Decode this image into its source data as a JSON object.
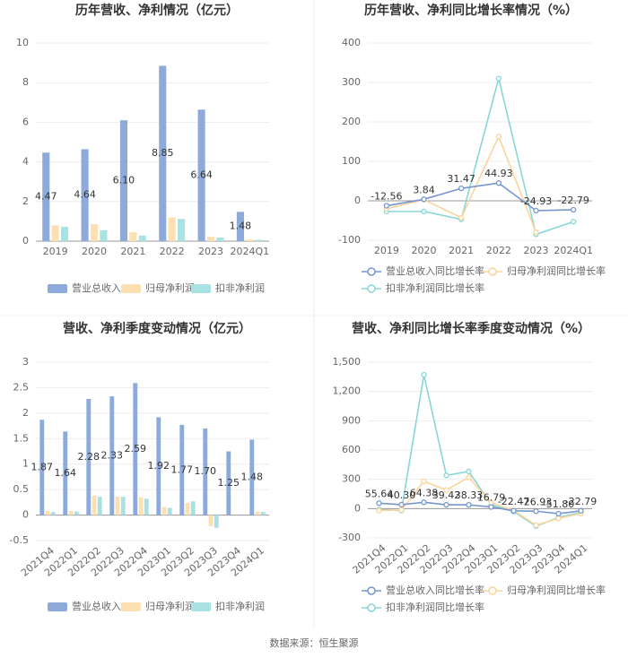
{
  "chart_data": [
    {
      "type": "bar",
      "title": "历年营收、净利情况（亿元）",
      "categories": [
        "2019",
        "2020",
        "2021",
        "2022",
        "2023",
        "2024Q1"
      ],
      "series": [
        {
          "name": "营业总收入",
          "color": "#8eaadb",
          "values": [
            4.47,
            4.64,
            6.1,
            8.85,
            6.64,
            1.48
          ],
          "value_labels": [
            "4.47",
            "4.64",
            "6.10",
            "8.85",
            "6.64",
            "1.48"
          ]
        },
        {
          "name": "归母净利润",
          "color": "#fde0b2",
          "values": [
            0.8,
            0.85,
            0.45,
            1.2,
            0.22,
            0.08
          ]
        },
        {
          "name": "扣非净利润",
          "color": "#a9e2e2",
          "values": [
            0.72,
            0.55,
            0.28,
            1.12,
            0.18,
            0.07
          ]
        }
      ],
      "ylim": [
        0,
        10
      ],
      "yticks": [
        0,
        2,
        4,
        6,
        8,
        10
      ],
      "grid": true
    },
    {
      "type": "line",
      "title": "历年营收、净利同比增长率情况（%）",
      "categories": [
        "2019",
        "2020",
        "2021",
        "2022",
        "2023",
        "2024Q1"
      ],
      "series": [
        {
          "name": "营业总收入同比增长率",
          "color": "#7596d1",
          "values": [
            -12.56,
            3.84,
            31.47,
            44.93,
            -24.93,
            -22.79
          ],
          "value_labels": [
            "-12.56",
            "3.84",
            "31.47",
            "44.93",
            "-24.93",
            "-22.79"
          ]
        },
        {
          "name": "归母净利润同比增长率",
          "color": "#fcd49b",
          "values": [
            -20,
            3,
            -43,
            163,
            -80,
            null
          ]
        },
        {
          "name": "扣非净利润同比增长率",
          "color": "#88d7d7",
          "values": [
            -27,
            -27,
            -47,
            310,
            -85,
            -53
          ]
        }
      ],
      "ylim": [
        -100,
        400
      ],
      "yticks": [
        -100,
        0,
        100,
        200,
        300,
        400
      ],
      "grid": true
    },
    {
      "type": "bar",
      "title": "营收、净利季度变动情况（亿元）",
      "categories": [
        "2021Q4",
        "2022Q1",
        "2022Q2",
        "2022Q3",
        "2022Q4",
        "2023Q1",
        "2023Q2",
        "2023Q3",
        "2023Q4",
        "2024Q1"
      ],
      "series": [
        {
          "name": "营业总收入",
          "color": "#8eaadb",
          "values": [
            1.87,
            1.64,
            2.28,
            2.33,
            2.59,
            1.92,
            1.77,
            1.7,
            1.25,
            1.48
          ],
          "value_labels": [
            "1.87",
            "1.64",
            "2.28",
            "2.33",
            "2.59",
            "1.92",
            "1.77",
            "1.70",
            "1.25",
            "1.48"
          ]
        },
        {
          "name": "归母净利润",
          "color": "#fde0b2",
          "values": [
            0.08,
            0.08,
            0.38,
            0.36,
            0.35,
            0.16,
            0.24,
            -0.22,
            0,
            0.07
          ]
        },
        {
          "name": "扣非净利润",
          "color": "#a9e2e2",
          "values": [
            0.06,
            0.07,
            0.36,
            0.36,
            0.32,
            0.14,
            0.27,
            -0.25,
            0,
            0.06
          ]
        }
      ],
      "ylim": [
        -0.5,
        3
      ],
      "yticks": [
        -0.5,
        0,
        0.5,
        1,
        1.5,
        2,
        2.5,
        3
      ],
      "grid": true
    },
    {
      "type": "line",
      "title": "营收、净利同比增长率季度变动情况（%）",
      "categories": [
        "2021Q4",
        "2022Q1",
        "2022Q2",
        "2022Q3",
        "2022Q4",
        "2023Q1",
        "2023Q2",
        "2023Q3",
        "2023Q4",
        "2024Q1"
      ],
      "series": [
        {
          "name": "营业总收入同比增长率",
          "color": "#7596d1",
          "values": [
            55.64,
            40.3,
            64.38,
            39.42,
            38.33,
            16.79,
            -22.47,
            -26.93,
            -51.8,
            -22.79
          ],
          "value_labels": [
            "55.64",
            "40.30",
            "64.38",
            "39.42",
            "38.33",
            "16.79",
            "-22.47",
            "-26.93",
            "-51.80",
            "-22.79"
          ]
        },
        {
          "name": "归母净利润同比增长率",
          "color": "#fcd49b",
          "values": [
            -20,
            -15,
            280,
            190,
            320,
            60,
            -20,
            -170,
            -100,
            -50
          ]
        },
        {
          "name": "扣非净利润同比增长率",
          "color": "#88d7d7",
          "values": [
            -10,
            -20,
            1370,
            340,
            380,
            40,
            -30,
            -180,
            -90,
            -40
          ]
        }
      ],
      "ylim": [
        -300,
        1500
      ],
      "yticks": [
        -300,
        0,
        300,
        600,
        900,
        {
          "value": 1200,
          "label": "1,200"
        },
        {
          "value": 1500,
          "label": "1,500"
        }
      ],
      "grid": true
    }
  ],
  "source": "数据来源：恒生聚源"
}
